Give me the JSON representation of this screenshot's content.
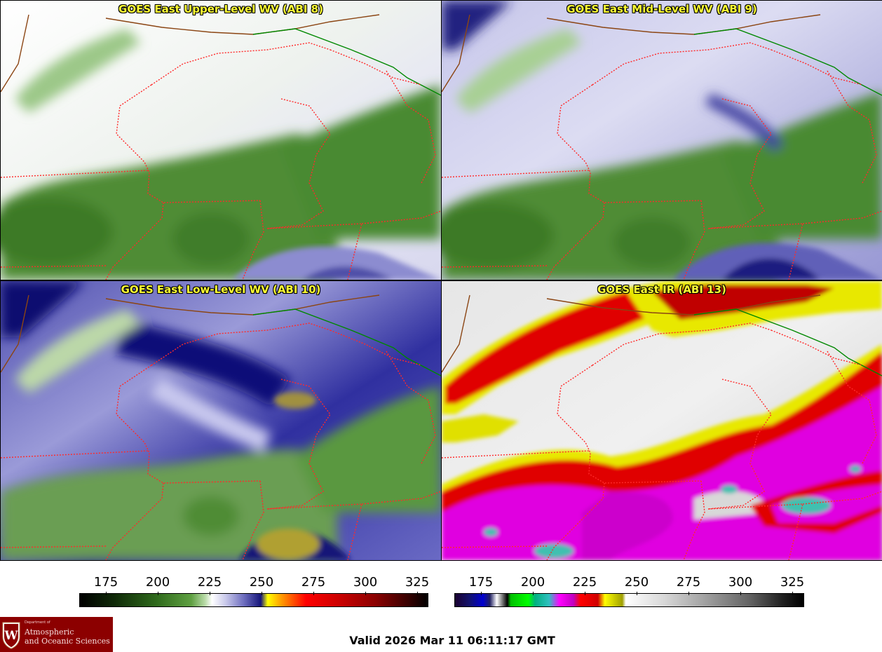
{
  "panels": [
    {
      "title": "GOES East Upper-Level WV (ABI 8)",
      "scheme": "wv_upper"
    },
    {
      "title": "GOES East Mid-Level WV (ABI 9)",
      "scheme": "wv_mid"
    },
    {
      "title": "GOES East Low-Level WV (ABI 10)",
      "scheme": "wv_low"
    },
    {
      "title": "GOES East IR (ABI 13)",
      "scheme": "ir"
    }
  ],
  "colorbars": {
    "water_vapor": {
      "ticks": [
        "175",
        "200",
        "225",
        "250",
        "275",
        "300",
        "325"
      ]
    },
    "infrared": {
      "ticks": [
        "175",
        "200",
        "225",
        "250",
        "275",
        "300",
        "325"
      ]
    }
  },
  "logo": {
    "department_line1": "Department of",
    "name_line1": "Atmospheric",
    "name_line2": "and Oceanic Sciences"
  },
  "valid_time": "Valid 2026 Mar 11 06:11:17 GMT",
  "colors": {
    "state_border": "#ff2a2a",
    "intl_border": "#008800",
    "coast_border": "#8b4513",
    "title_text": "#ffff33"
  }
}
